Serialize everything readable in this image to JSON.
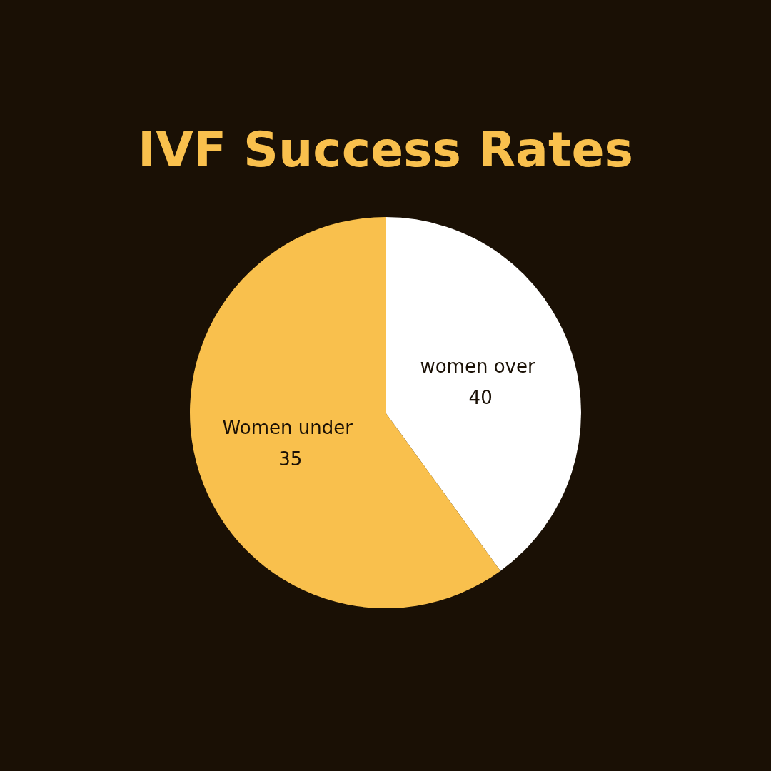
{
  "chart_data": {
    "type": "pie",
    "title": "IVF Success Rates",
    "categories": [
      "women over 40",
      "Women under 35"
    ],
    "values": [
      40,
      60
    ],
    "colors": [
      "#ffffff",
      "#f9c04d"
    ],
    "legend": false
  }
}
